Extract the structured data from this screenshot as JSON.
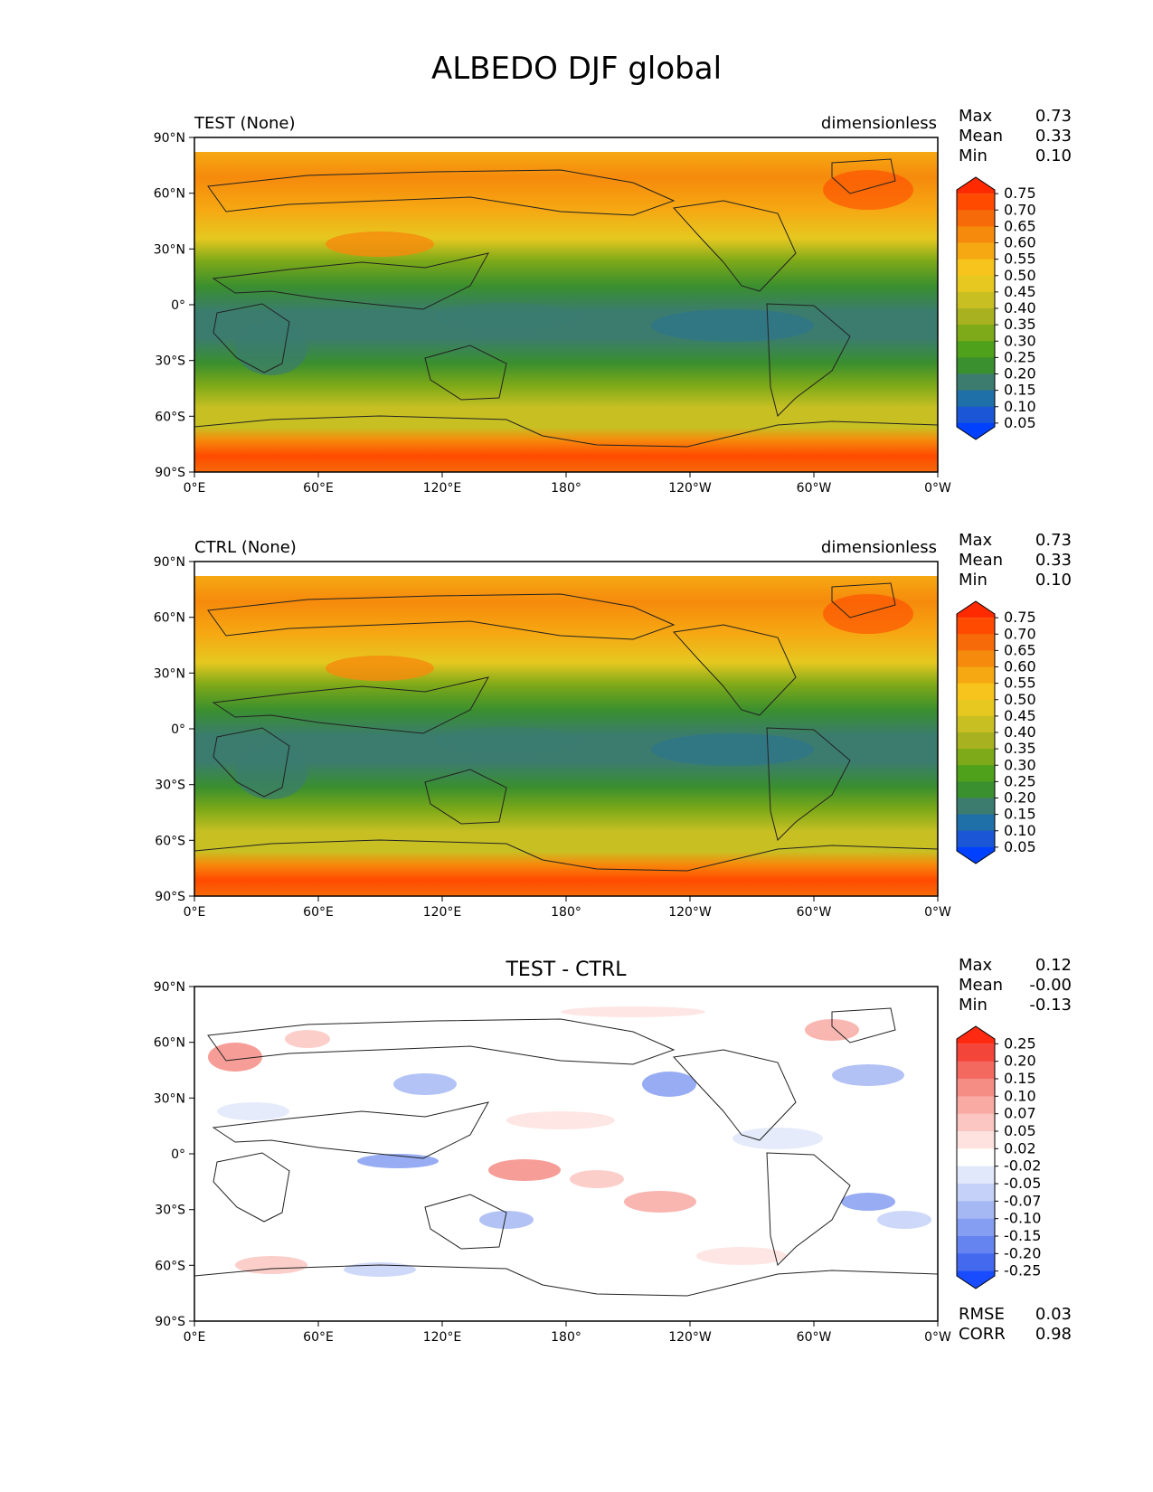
{
  "title": "ALBEDO DJF global",
  "panels": [
    {
      "id": "test",
      "left_title": "TEST (None)",
      "center_title": "",
      "units": "dimensionless",
      "stats": [
        {
          "label": "Max",
          "value": "0.73"
        },
        {
          "label": "Mean",
          "value": "0.33"
        },
        {
          "label": "Min",
          "value": "0.10"
        }
      ],
      "colorbar": {
        "labels": [
          "0.75",
          "0.70",
          "0.65",
          "0.60",
          "0.55",
          "0.50",
          "0.45",
          "0.40",
          "0.35",
          "0.30",
          "0.25",
          "0.20",
          "0.15",
          "0.10",
          "0.05"
        ],
        "colors": [
          "#ff2a00",
          "#ff4a00",
          "#f76a0a",
          "#f68a0c",
          "#f6a812",
          "#f6c41c",
          "#e6c820",
          "#c8c023",
          "#a8b220",
          "#7ea918",
          "#4fa01b",
          "#3a8f2e",
          "#3b7c6f",
          "#1f6fa8",
          "#1a56d6",
          "#0041ff"
        ]
      }
    },
    {
      "id": "ctrl",
      "left_title": "CTRL (None)",
      "center_title": "",
      "units": "dimensionless",
      "stats": [
        {
          "label": "Max",
          "value": "0.73"
        },
        {
          "label": "Mean",
          "value": "0.33"
        },
        {
          "label": "Min",
          "value": "0.10"
        }
      ],
      "colorbar": {
        "labels": [
          "0.75",
          "0.70",
          "0.65",
          "0.60",
          "0.55",
          "0.50",
          "0.45",
          "0.40",
          "0.35",
          "0.30",
          "0.25",
          "0.20",
          "0.15",
          "0.10",
          "0.05"
        ],
        "colors": [
          "#ff2a00",
          "#ff4a00",
          "#f76a0a",
          "#f68a0c",
          "#f6a812",
          "#f6c41c",
          "#e6c820",
          "#c8c023",
          "#a8b220",
          "#7ea918",
          "#4fa01b",
          "#3a8f2e",
          "#3b7c6f",
          "#1f6fa8",
          "#1a56d6",
          "#0041ff"
        ]
      }
    },
    {
      "id": "diff",
      "left_title": "",
      "center_title": "TEST - CTRL",
      "units": "",
      "stats": [
        {
          "label": "Max",
          "value": "0.12"
        },
        {
          "label": "Mean",
          "value": "-0.00"
        },
        {
          "label": "Min",
          "value": "-0.13"
        }
      ],
      "extra_stats": [
        {
          "label": "RMSE",
          "value": "0.03"
        },
        {
          "label": "CORR",
          "value": "0.98"
        }
      ],
      "colorbar": {
        "labels": [
          "0.25",
          "0.20",
          "0.15",
          "0.10",
          "0.07",
          "0.05",
          "0.02",
          "-0.02",
          "-0.05",
          "-0.07",
          "-0.10",
          "-0.15",
          "-0.20",
          "-0.25"
        ],
        "colors": [
          "#ff2a12",
          "#f4453a",
          "#f4695f",
          "#f58d85",
          "#f8aaa3",
          "#fbc6c1",
          "#fde2df",
          "#ffffff",
          "#e2e8fb",
          "#c5d1f8",
          "#a6b8f4",
          "#869ef2",
          "#6584ef",
          "#4469ef",
          "#1a4cff"
        ]
      }
    }
  ],
  "x_ticks": [
    "0°E",
    "60°E",
    "120°E",
    "180°",
    "120°W",
    "60°W",
    "0°W"
  ],
  "y_ticks": [
    "90°N",
    "60°N",
    "30°N",
    "0°",
    "30°S",
    "60°S",
    "90°S"
  ],
  "chart_data": [
    {
      "type": "heatmap",
      "title": "TEST (None)",
      "units": "dimensionless",
      "xlabel": "",
      "ylabel": "",
      "xlim": [
        0,
        360
      ],
      "ylim": [
        -90,
        90
      ],
      "x_tick_labels": [
        "0°E",
        "60°E",
        "120°E",
        "180°",
        "120°W",
        "60°W",
        "0°W"
      ],
      "y_tick_labels": [
        "90°N",
        "60°N",
        "30°N",
        "0°",
        "30°S",
        "60°S",
        "90°S"
      ],
      "latitudes": [
        80,
        60,
        45,
        30,
        15,
        0,
        -15,
        -30,
        -45,
        -60,
        -75,
        -88
      ],
      "zonal_band_values": [
        0.62,
        0.58,
        0.5,
        0.36,
        0.26,
        0.24,
        0.25,
        0.22,
        0.32,
        0.42,
        0.7,
        0.72
      ],
      "colorbar_levels": [
        0.05,
        0.1,
        0.15,
        0.2,
        0.25,
        0.3,
        0.35,
        0.4,
        0.45,
        0.5,
        0.55,
        0.6,
        0.65,
        0.7,
        0.75
      ],
      "stats": {
        "max": 0.73,
        "mean": 0.33,
        "min": 0.1
      }
    },
    {
      "type": "heatmap",
      "title": "CTRL (None)",
      "units": "dimensionless",
      "xlabel": "",
      "ylabel": "",
      "xlim": [
        0,
        360
      ],
      "ylim": [
        -90,
        90
      ],
      "x_tick_labels": [
        "0°E",
        "60°E",
        "120°E",
        "180°",
        "120°W",
        "60°W",
        "0°W"
      ],
      "y_tick_labels": [
        "90°N",
        "60°N",
        "30°N",
        "0°",
        "30°S",
        "60°S",
        "90°S"
      ],
      "latitudes": [
        80,
        60,
        45,
        30,
        15,
        0,
        -15,
        -30,
        -45,
        -60,
        -75,
        -88
      ],
      "zonal_band_values": [
        0.62,
        0.58,
        0.5,
        0.36,
        0.26,
        0.24,
        0.25,
        0.22,
        0.32,
        0.42,
        0.7,
        0.72
      ],
      "colorbar_levels": [
        0.05,
        0.1,
        0.15,
        0.2,
        0.25,
        0.3,
        0.35,
        0.4,
        0.45,
        0.5,
        0.55,
        0.6,
        0.65,
        0.7,
        0.75
      ],
      "stats": {
        "max": 0.73,
        "mean": 0.33,
        "min": 0.1
      }
    },
    {
      "type": "heatmap",
      "title": "TEST - CTRL",
      "xlabel": "",
      "ylabel": "",
      "xlim": [
        0,
        360
      ],
      "ylim": [
        -90,
        90
      ],
      "x_tick_labels": [
        "0°E",
        "60°E",
        "120°E",
        "180°",
        "120°W",
        "60°W",
        "0°W"
      ],
      "y_tick_labels": [
        "90°N",
        "60°N",
        "30°N",
        "0°",
        "30°S",
        "60°S",
        "90°S"
      ],
      "colorbar_levels": [
        -0.25,
        -0.2,
        -0.15,
        -0.1,
        -0.07,
        -0.05,
        -0.02,
        0.02,
        0.05,
        0.07,
        0.1,
        0.15,
        0.2,
        0.25
      ],
      "stats": {
        "max": 0.12,
        "mean": -0.0,
        "min": -0.13,
        "rmse": 0.03,
        "corr": 0.98
      }
    }
  ]
}
